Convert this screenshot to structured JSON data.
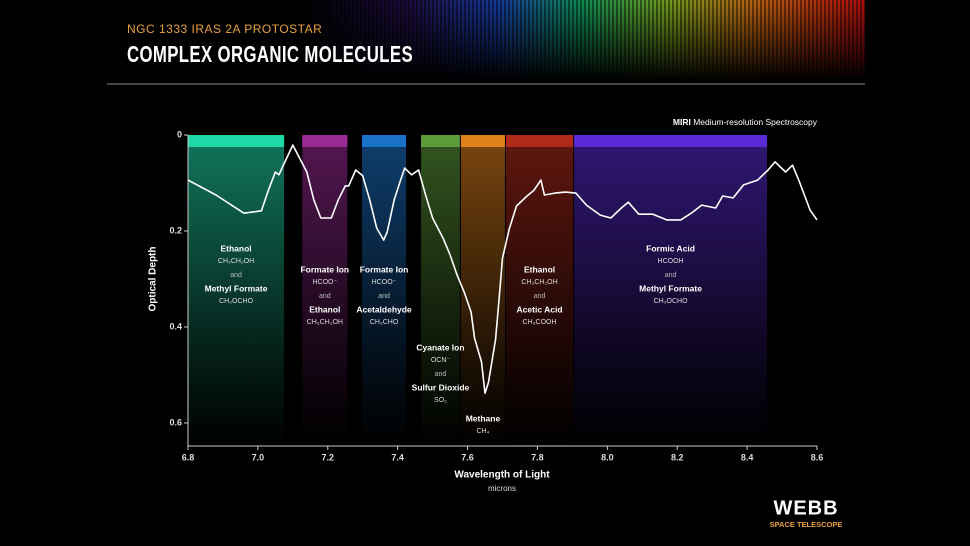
{
  "chart_data": {
    "type": "line",
    "supertitle": "NGC 1333 IRAS 2A PROTOSTAR",
    "title": "COMPLEX ORGANIC MOLECULES",
    "instrument": "MIRI",
    "instrument_note": "Medium-resolution Spectroscopy",
    "x_label": "Wavelength of Light",
    "x_unit": "microns",
    "y_label": "Optical Depth",
    "xlim": [
      6.8,
      8.6
    ],
    "ylim": [
      0,
      0.648
    ],
    "y_inverted": true,
    "xticks": [
      6.8,
      {
        "value": 7,
        "label": "7.0"
      },
      7.2,
      7.4,
      7.6,
      7.8,
      {
        "value": 8,
        "label": "8.0"
      },
      8.2,
      8.4,
      8.6
    ],
    "yticks": [
      0,
      0.2,
      0.4,
      0.6
    ],
    "x": [
      6.8,
      6.88,
      6.96,
      7.01,
      7.03,
      7.05,
      7.06,
      7.08,
      7.1,
      7.11,
      7.14,
      7.16,
      7.18,
      7.21,
      7.23,
      7.25,
      7.26,
      7.28,
      7.3,
      7.32,
      7.34,
      7.36,
      7.37,
      7.39,
      7.41,
      7.42,
      7.44,
      7.46,
      7.48,
      7.5,
      7.53,
      7.55,
      7.57,
      7.59,
      7.61,
      7.62,
      7.64,
      7.65,
      7.66,
      7.68,
      7.69,
      7.7,
      7.72,
      7.74,
      7.77,
      7.79,
      7.81,
      7.82,
      7.85,
      7.88,
      7.91,
      7.94,
      7.98,
      8.01,
      8.04,
      8.06,
      8.09,
      8.13,
      8.17,
      8.21,
      8.24,
      8.27,
      8.31,
      8.33,
      8.36,
      8.39,
      8.43,
      8.46,
      8.48,
      8.51,
      8.53,
      8.55,
      8.58,
      8.6
    ],
    "series": [
      {
        "color": "#ffffff",
        "values": [
          0.094,
          0.125,
          0.163,
          0.158,
          0.115,
          0.077,
          0.083,
          0.052,
          0.021,
          0.035,
          0.077,
          0.135,
          0.173,
          0.173,
          0.135,
          0.106,
          0.106,
          0.073,
          0.085,
          0.135,
          0.194,
          0.219,
          0.202,
          0.135,
          0.09,
          0.069,
          0.083,
          0.073,
          0.125,
          0.173,
          0.215,
          0.25,
          0.292,
          0.327,
          0.369,
          0.423,
          0.473,
          0.538,
          0.515,
          0.427,
          0.344,
          0.256,
          0.194,
          0.148,
          0.127,
          0.115,
          0.094,
          0.125,
          0.121,
          0.119,
          0.121,
          0.146,
          0.167,
          0.173,
          0.152,
          0.14,
          0.165,
          0.165,
          0.177,
          0.177,
          0.163,
          0.146,
          0.152,
          0.127,
          0.131,
          0.104,
          0.094,
          0.073,
          0.056,
          0.077,
          0.063,
          0.098,
          0.156,
          0.177
        ]
      }
    ],
    "connector": "and",
    "bands": [
      {
        "x0": 6.8,
        "x1": 7.075,
        "color": "#1fd8a8",
        "molecules": [
          {
            "name": "Ethanol",
            "formula": "CH₃CH₂OH"
          },
          {
            "name": "Methyl Formate",
            "formula": "CH₃OCHO"
          }
        ]
      },
      {
        "x0": 7.127,
        "x1": 7.256,
        "color": "#9a2a96",
        "molecules": [
          {
            "name": "Formate Ion",
            "formula": "HCOO⁻"
          },
          {
            "name": "Ethanol",
            "formula": "CH₃CH₂OH"
          }
        ]
      },
      {
        "x0": 7.298,
        "x1": 7.424,
        "color": "#1a72c8",
        "molecules": [
          {
            "name": "Formate Ion",
            "formula": "HCOO⁻"
          },
          {
            "name": "Acetaldehyde",
            "formula": "CH₃CHO"
          }
        ]
      },
      {
        "x0": 7.467,
        "x1": 7.578,
        "color": "#5e9c3a",
        "molecules": [
          {
            "name": "Cyanate Ion",
            "formula": "OCN⁻"
          },
          {
            "name": "Sulfur Dioxide",
            "formula": "SO₂"
          }
        ]
      },
      {
        "x0": 7.581,
        "x1": 7.707,
        "color": "#e0801a",
        "molecules": [
          {
            "name": "Methane",
            "formula": "CH₄"
          }
        ]
      },
      {
        "x0": 7.71,
        "x1": 7.902,
        "color": "#b02a1a",
        "molecules": [
          {
            "name": "Ethanol",
            "formula": "CH₃CH₂OH"
          },
          {
            "name": "Acetic Acid",
            "formula": "CH₃COOH"
          }
        ]
      },
      {
        "x0": 7.905,
        "x1": 8.457,
        "color": "#5a2ad6",
        "molecules": [
          {
            "name": "Formic Acid",
            "formula": "HCOOH"
          },
          {
            "name": "Methyl Formate",
            "formula": "CH₃OCHO"
          }
        ]
      }
    ],
    "logo": "WEBB",
    "logo_subtitle": "SPACE TELESCOPE"
  }
}
